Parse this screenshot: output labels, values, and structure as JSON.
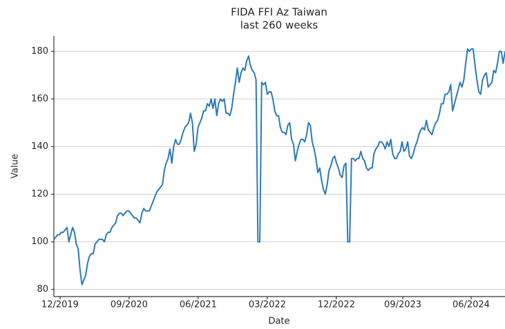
{
  "chart_data": {
    "type": "line",
    "title": "FIDA FFI Az Taiwan",
    "subtitle": "last 260 weeks",
    "x_label": "Date",
    "y_label": "Value",
    "x": [
      0,
      1,
      2,
      3,
      4,
      5,
      6,
      7,
      8,
      9,
      10,
      11,
      12,
      13,
      14,
      15,
      16,
      17,
      18,
      19,
      20,
      21,
      22,
      23,
      24,
      25,
      26,
      27,
      28,
      29,
      30,
      31,
      32,
      33,
      34,
      35,
      36,
      37,
      38,
      39,
      40,
      41,
      42,
      43,
      44,
      45,
      46,
      47,
      48,
      49,
      50,
      51,
      52,
      53,
      54,
      55,
      56,
      57,
      58,
      59,
      60,
      61,
      62,
      63,
      64,
      65,
      66,
      67,
      68,
      69,
      70,
      71,
      72,
      73,
      74,
      75,
      76,
      77,
      78,
      79,
      80,
      81,
      82,
      83,
      84,
      85,
      86,
      87,
      88,
      89,
      90,
      91,
      92,
      93,
      94,
      95,
      96,
      97,
      98,
      99,
      100,
      101,
      102,
      103,
      104,
      105,
      106,
      107,
      108,
      109,
      110,
      111,
      112,
      113,
      114,
      115,
      116,
      117,
      118,
      119,
      120,
      121,
      122,
      123,
      124,
      125,
      126,
      127,
      128,
      129,
      130,
      131,
      132,
      133,
      134,
      135,
      136,
      137,
      138,
      139,
      140,
      141,
      142,
      143,
      144,
      145,
      146,
      147,
      148,
      149,
      150,
      151,
      152,
      153,
      154,
      155,
      156,
      157,
      158,
      159,
      160,
      161,
      162,
      163,
      164,
      165,
      166,
      167,
      168,
      169,
      170,
      171,
      172,
      173,
      174,
      175,
      176,
      177,
      178,
      179,
      180,
      181,
      182,
      183,
      184,
      185,
      186,
      187,
      188,
      189,
      190,
      191,
      192,
      193,
      194,
      195,
      196,
      197,
      198,
      199,
      200,
      201,
      202,
      203,
      204,
      205,
      206,
      207,
      208,
      209,
      210,
      211,
      212,
      213,
      214,
      215,
      216,
      217,
      218,
      219,
      220,
      221,
      222,
      223,
      224,
      225,
      226,
      227,
      228,
      229,
      230,
      231,
      232,
      233,
      234,
      235,
      236,
      237,
      238,
      239,
      240,
      241
    ],
    "series": [
      {
        "name": "FIDA FFI Az Taiwan",
        "color": "#2a7ab9",
        "values": [
          101,
          102,
          103,
          103,
          104,
          104,
          105,
          106,
          100,
          103,
          106,
          104,
          99,
          97,
          88,
          82,
          84,
          86,
          91,
          94,
          95,
          95,
          99,
          100,
          101,
          101,
          101,
          100,
          103,
          104,
          104,
          106,
          107,
          108,
          111,
          112,
          112,
          111,
          112,
          113,
          113,
          112,
          111,
          110,
          110,
          109,
          108,
          112,
          114,
          113,
          113,
          113,
          115,
          117,
          119,
          121,
          122,
          123,
          124,
          130,
          133,
          135,
          139,
          133,
          140,
          143,
          141,
          141,
          143,
          146,
          148,
          149,
          150,
          154,
          150,
          138,
          141,
          148,
          150,
          152,
          155,
          155,
          158,
          157,
          160,
          156,
          160,
          153,
          158,
          160,
          159,
          160,
          154,
          154,
          153,
          156,
          162,
          167,
          173,
          167,
          171,
          173,
          172,
          176,
          178,
          174,
          172,
          171,
          168,
          100,
          100,
          167,
          166,
          167,
          162,
          163,
          163,
          160,
          155,
          153,
          153,
          148,
          146,
          146,
          145,
          149,
          150,
          143,
          141,
          134,
          138,
          141,
          143,
          143,
          142,
          145,
          150,
          149,
          142,
          139,
          135,
          129,
          131,
          126,
          122,
          120,
          124,
          130,
          132,
          135,
          136,
          133,
          131,
          128,
          127,
          132,
          133,
          100,
          100,
          135,
          135,
          134,
          135,
          135,
          138,
          135,
          134,
          131,
          130,
          131,
          131,
          137,
          139,
          140,
          142,
          142,
          141,
          139,
          142,
          140,
          143,
          137,
          135,
          135,
          137,
          138,
          142,
          138,
          139,
          142,
          136,
          135,
          137,
          140,
          142,
          145,
          147,
          148,
          147,
          151,
          147,
          146,
          145,
          148,
          150,
          151,
          154,
          158,
          158,
          162,
          162,
          163,
          166,
          155,
          158,
          161,
          164,
          167,
          165,
          168,
          175,
          181,
          180,
          181,
          181,
          174,
          168,
          163,
          162,
          168,
          170,
          171,
          165,
          166,
          167,
          172,
          171,
          175,
          180,
          180,
          175,
          180
        ]
      }
    ],
    "xlim": [
      0,
      241
    ],
    "xticks": [
      {
        "value": 3.3,
        "label": "12/2019"
      },
      {
        "value": 40.2,
        "label": "09/2020"
      },
      {
        "value": 77.1,
        "label": "06/2021"
      },
      {
        "value": 114,
        "label": "03/2022"
      },
      {
        "value": 150.9,
        "label": "12/2022"
      },
      {
        "value": 186.4,
        "label": "09/2023"
      },
      {
        "value": 222.9,
        "label": "06/2024"
      }
    ],
    "ylim": [
      77,
      186.5
    ],
    "yticks": [
      80,
      100,
      120,
      140,
      160,
      180
    ],
    "grid": true
  }
}
